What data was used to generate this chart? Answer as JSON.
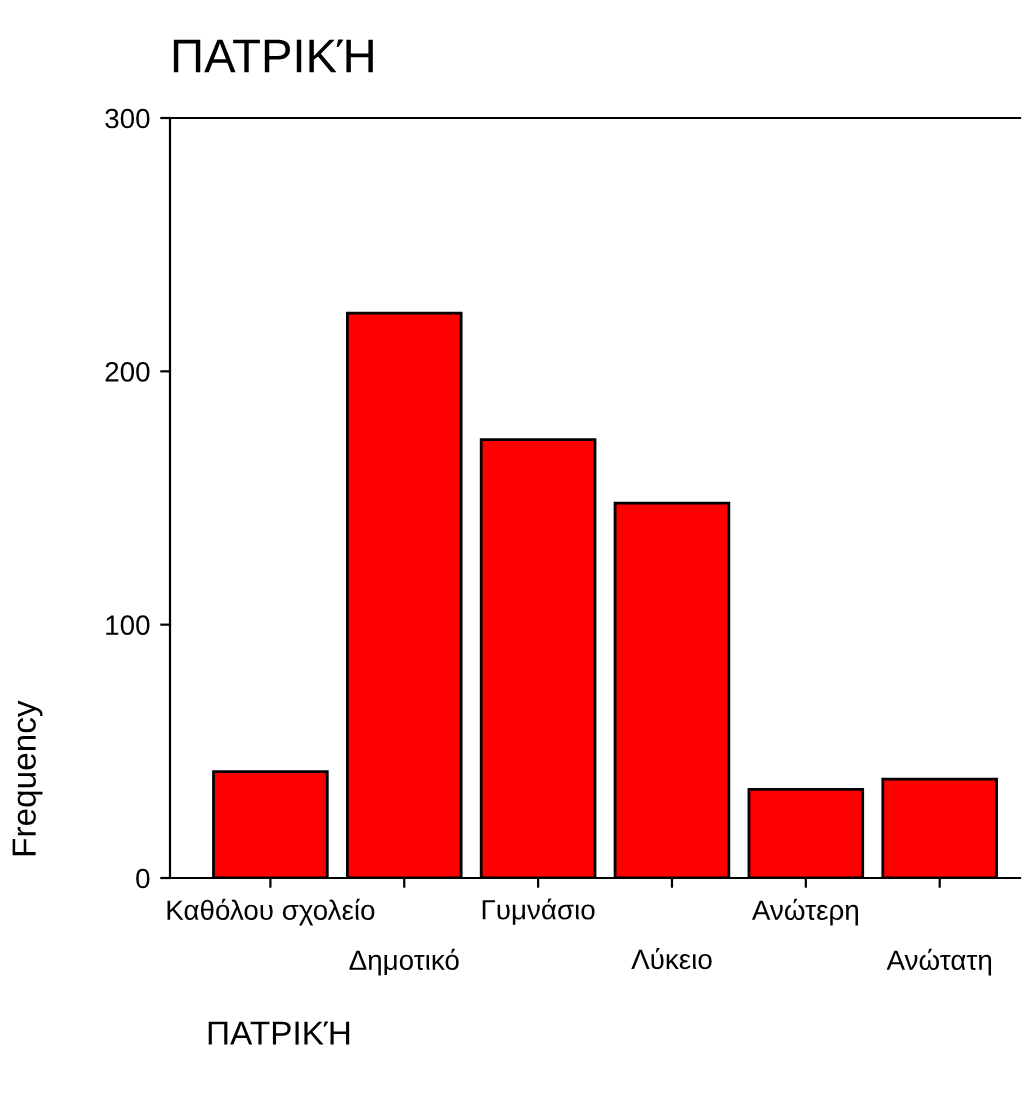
{
  "chart_data": {
    "type": "bar",
    "title": "ΠΑΤΡΙΚΉ",
    "xlabel": "ΠΑΤΡΙΚΉ",
    "ylabel": "Frequency",
    "categories": [
      "Καθόλου σχολείο",
      "Δημοτικό",
      "Γυμνάσιο",
      "Λύκειο",
      "Ανώτερη",
      "Ανώτατη"
    ],
    "values": [
      42,
      223,
      173,
      148,
      35,
      39
    ],
    "color": "#ff0000",
    "ylim": [
      0,
      300
    ],
    "yticks": [
      0,
      100,
      200,
      300
    ],
    "grid": false
  }
}
